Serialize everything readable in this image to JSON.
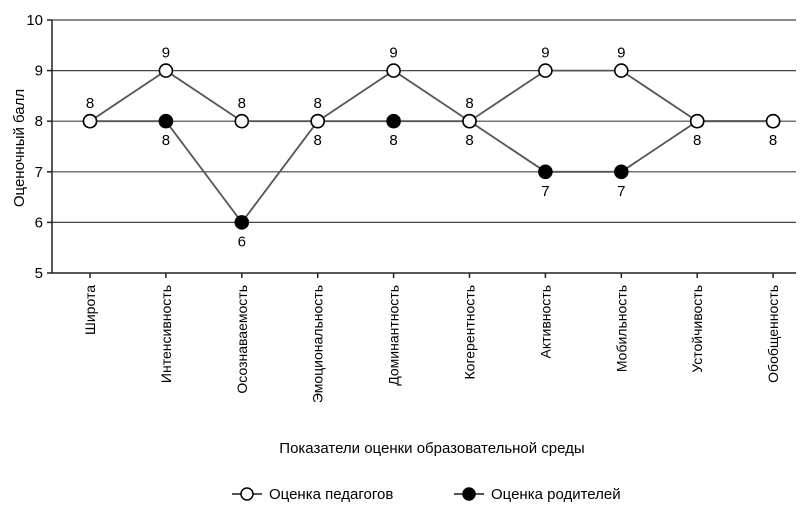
{
  "chart_data": {
    "type": "line",
    "title": "",
    "xlabel": "Показатели оценки образовательной среды",
    "ylabel": "Оценочный балл",
    "ylim": [
      5,
      10
    ],
    "yticks": [
      5,
      6,
      7,
      8,
      9,
      10
    ],
    "grid": "horizontal",
    "legend_position": "bottom-center",
    "categories": [
      "Широта",
      "Интенсивность",
      "Осознаваемость",
      "Эмоциональность",
      "Доминантность",
      "Когерентность",
      "Активность",
      "Мобильность",
      "Устойчивость",
      "Обобщенность"
    ],
    "series": [
      {
        "name": "Оценка педагогов",
        "marker": "open-circle",
        "values": [
          8,
          9,
          8,
          8,
          9,
          8,
          9,
          9,
          8,
          8
        ],
        "labels": [
          "8",
          "9",
          "8",
          "8",
          "9",
          "8",
          "9",
          "9",
          "",
          ""
        ],
        "label_side": "above"
      },
      {
        "name": "Оценка родителей",
        "marker": "filled-circle",
        "values": [
          8,
          8,
          6,
          8,
          8,
          8,
          7,
          7,
          8,
          8
        ],
        "labels": [
          "",
          "8",
          "6",
          "8",
          "8",
          "8",
          "7",
          "7",
          "8",
          "8"
        ],
        "label_side": "below"
      }
    ],
    "colors": {
      "line": "#555555",
      "grid": "#444444",
      "axis": "#222222",
      "marker_fill_open": "#ffffff",
      "marker_fill_closed": "#000000"
    }
  }
}
